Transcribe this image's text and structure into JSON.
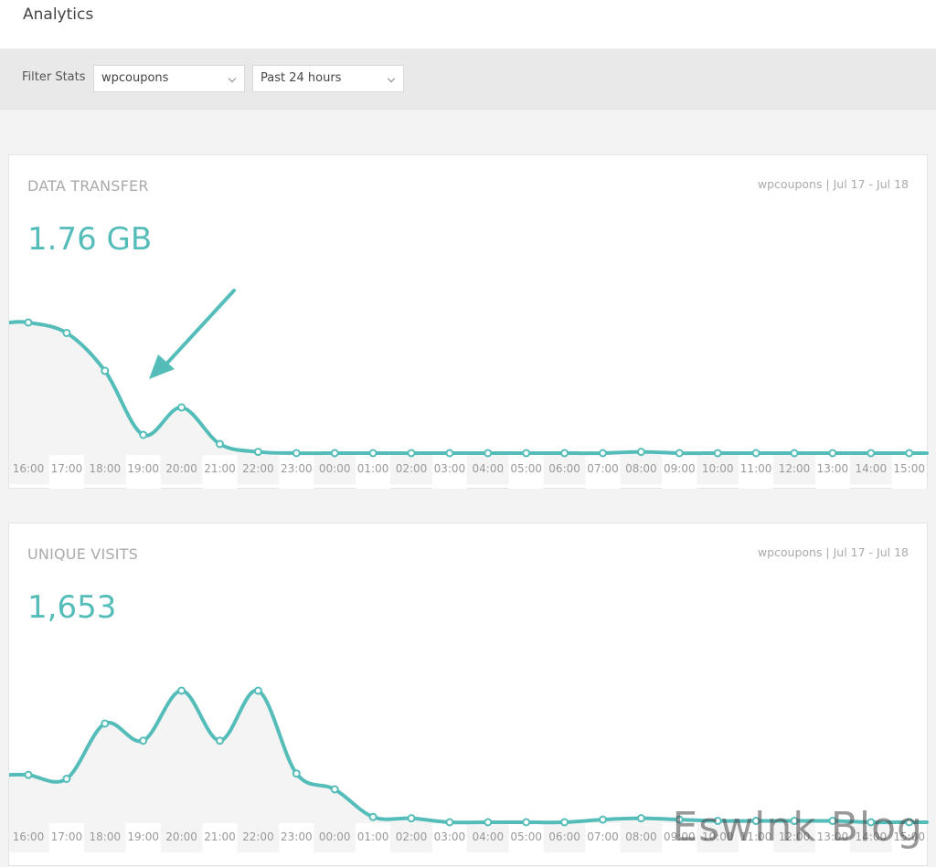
{
  "header": {
    "title": "Analytics"
  },
  "filter": {
    "label": "Filter Stats",
    "site": "wpcoupons",
    "period": "Past 24 hours"
  },
  "colors": {
    "accent": "#55bdb9",
    "fill": "#f4f4f4"
  },
  "hours": [
    "16:00",
    "17:00",
    "18:00",
    "19:00",
    "20:00",
    "21:00",
    "22:00",
    "23:00",
    "00:00",
    "01:00",
    "02:00",
    "03:00",
    "04:00",
    "05:00",
    "06:00",
    "07:00",
    "08:00",
    "09:00",
    "10:00",
    "11:00",
    "12:00",
    "13:00",
    "14:00",
    "15:00"
  ],
  "charts": [
    {
      "title": "DATA TRANSFER",
      "range": "wpcoupons | Jul 17 - Jul 18",
      "total": "1.76 GB",
      "values": [
        100,
        92,
        63,
        14,
        35,
        7,
        1,
        0,
        0,
        0,
        0,
        0,
        0,
        0,
        0,
        0,
        1,
        0,
        0,
        0,
        0,
        0,
        0,
        0
      ]
    },
    {
      "title": "UNIQUE VISITS",
      "range": "wpcoupons | Jul 17 - Jul 18",
      "total": "1,653",
      "values": [
        36,
        33,
        75,
        62,
        100,
        62,
        100,
        37,
        25,
        4,
        3,
        0,
        0,
        0,
        0,
        2,
        3,
        2,
        1,
        1,
        1,
        1,
        0,
        0
      ]
    }
  ],
  "watermark": "Eswlnk Blog",
  "chart_data": [
    {
      "type": "area",
      "title": "DATA TRANSFER",
      "x": [
        "16:00",
        "17:00",
        "18:00",
        "19:00",
        "20:00",
        "21:00",
        "22:00",
        "23:00",
        "00:00",
        "01:00",
        "02:00",
        "03:00",
        "04:00",
        "05:00",
        "06:00",
        "07:00",
        "08:00",
        "09:00",
        "10:00",
        "11:00",
        "12:00",
        "13:00",
        "14:00",
        "15:00"
      ],
      "series": [
        {
          "values": [
            100,
            92,
            63,
            14,
            35,
            7,
            1,
            0,
            0,
            0,
            0,
            0,
            0,
            0,
            0,
            0,
            1,
            0,
            0,
            0,
            0,
            0,
            0,
            0
          ]
        }
      ]
    },
    {
      "type": "area",
      "title": "UNIQUE VISITS",
      "x": [
        "16:00",
        "17:00",
        "18:00",
        "19:00",
        "20:00",
        "21:00",
        "22:00",
        "23:00",
        "00:00",
        "01:00",
        "02:00",
        "03:00",
        "04:00",
        "05:00",
        "06:00",
        "07:00",
        "08:00",
        "09:00",
        "10:00",
        "11:00",
        "12:00",
        "13:00",
        "14:00",
        "15:00"
      ],
      "series": [
        {
          "values": [
            36,
            33,
            75,
            62,
            100,
            62,
            100,
            37,
            25,
            4,
            3,
            0,
            0,
            0,
            0,
            2,
            3,
            2,
            1,
            1,
            1,
            1,
            0,
            0
          ]
        }
      ]
    }
  ]
}
